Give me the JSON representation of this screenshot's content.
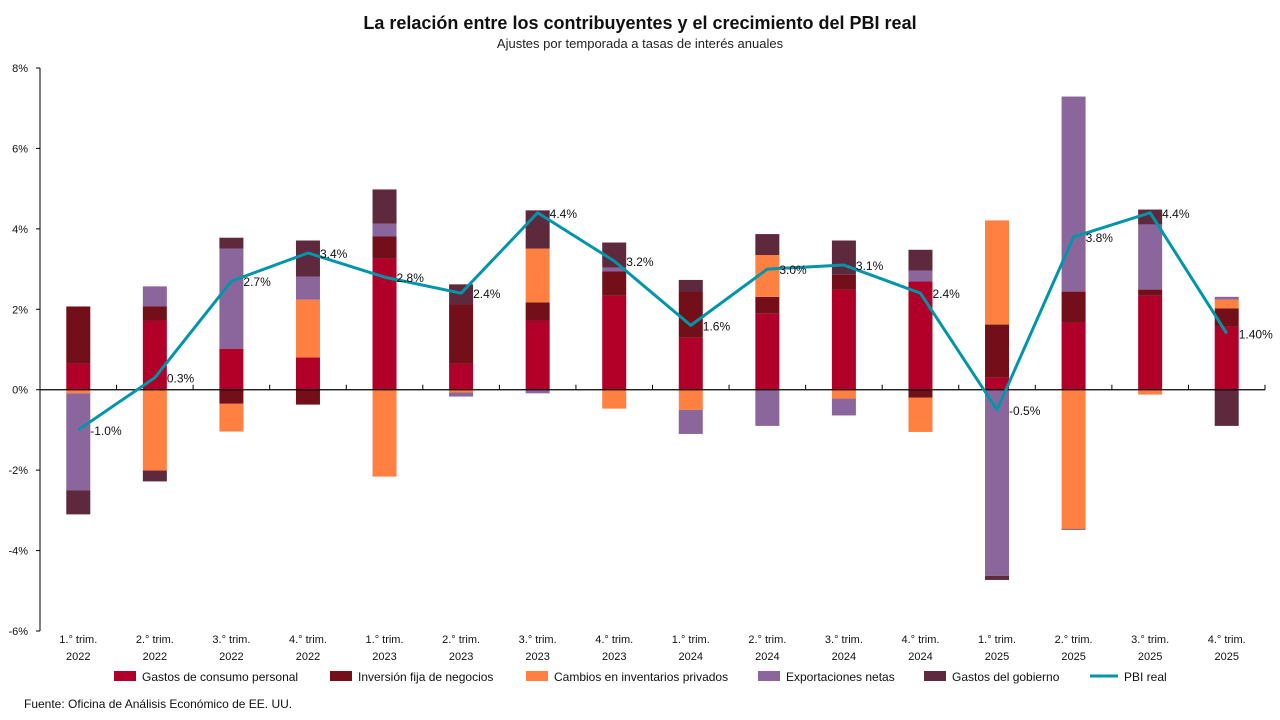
{
  "chart_data": {
    "type": "bar",
    "stacked": true,
    "title": "La relación entre los contribuyentes y el crecimiento del PBI real",
    "subtitle": "Ajustes por temporada a tasas de interés anuales",
    "source": "Fuente: Oficina de Análisis Económico de EE. UU.",
    "ylim": [
      -6,
      8
    ],
    "yticks": [
      "-6%",
      "-4%",
      "-2%",
      "0%",
      "2%",
      "4%",
      "6%",
      "8%"
    ],
    "ytick_values": [
      -6,
      -4,
      -2,
      0,
      2,
      4,
      6,
      8
    ],
    "grid": false,
    "legend_position": "bottom",
    "categories": [
      [
        "1.° trim.",
        "2022"
      ],
      [
        "2.° trim.",
        "2022"
      ],
      [
        "3.° trim.",
        "2022"
      ],
      [
        "4.° trim.",
        "2022"
      ],
      [
        "1.° trim.",
        "2023"
      ],
      [
        "2.° trim.",
        "2023"
      ],
      [
        "3.° trim.",
        "2023"
      ],
      [
        "4.° trim.",
        "2023"
      ],
      [
        "1.° trim.",
        "2024"
      ],
      [
        "2.° trim.",
        "2024"
      ],
      [
        "3.° trim.",
        "2024"
      ],
      [
        "4.° trim.",
        "2024"
      ],
      [
        "1.° trim.",
        "2025"
      ],
      [
        "2.° trim.",
        "2025"
      ],
      [
        "3.° trim.",
        "2025"
      ],
      [
        "4.° trim.",
        "2025"
      ]
    ],
    "series": [
      {
        "name": "Gastos de consumo personal",
        "color": "#b0002a",
        "values": [
          0.65,
          1.72,
          1.02,
          0.8,
          3.26,
          0.65,
          1.72,
          2.34,
          1.29,
          1.89,
          2.49,
          2.69,
          0.3,
          1.67,
          2.34,
          1.57
        ]
      },
      {
        "name": "Inversión fija de negocios",
        "color": "#730f18",
        "values": [
          1.42,
          0.35,
          -0.35,
          -0.37,
          0.55,
          1.47,
          0.45,
          0.6,
          1.14,
          0.42,
          0.37,
          -0.2,
          1.32,
          0.77,
          0.15,
          0.45
        ]
      },
      {
        "name": "Cambios en inventarios privados",
        "color": "#ff8040",
        "values": [
          -0.09,
          -2.01,
          -0.69,
          1.44,
          -2.16,
          -0.07,
          1.34,
          -0.47,
          -0.5,
          1.04,
          -0.22,
          -0.85,
          2.59,
          -3.46,
          -0.12,
          0.22
        ]
      },
      {
        "name": "Exportaciones netas",
        "color": "#8b669c",
        "values": [
          -2.41,
          0.5,
          2.49,
          0.57,
          0.32,
          -0.1,
          -0.09,
          0.1,
          -0.6,
          -0.9,
          -0.42,
          0.27,
          -4.63,
          4.85,
          1.62,
          0.07
        ]
      },
      {
        "name": "Gastos del gobierno",
        "color": "#5e283d",
        "values": [
          -0.6,
          -0.27,
          0.27,
          0.9,
          0.85,
          0.5,
          0.95,
          0.62,
          0.3,
          0.52,
          0.85,
          0.52,
          -0.1,
          -0.02,
          0.37,
          -0.9
        ]
      }
    ],
    "line": {
      "name": "PBI real",
      "color": "#0096a8",
      "values": [
        -1.0,
        0.3,
        2.7,
        3.4,
        2.8,
        2.4,
        4.4,
        3.2,
        1.6,
        3.0,
        3.1,
        2.4,
        -0.5,
        3.8,
        4.4,
        1.4
      ],
      "labels": [
        "-1.0%",
        "0.3%",
        "2.7%",
        "3.4%",
        "2.8%",
        "2.4%",
        "4.4%",
        "3.2%",
        "1.6%",
        "3.0%",
        "3.1%",
        "2.4%",
        "-0.5%",
        "3.8%",
        "4.4%",
        "1.40%"
      ]
    }
  }
}
